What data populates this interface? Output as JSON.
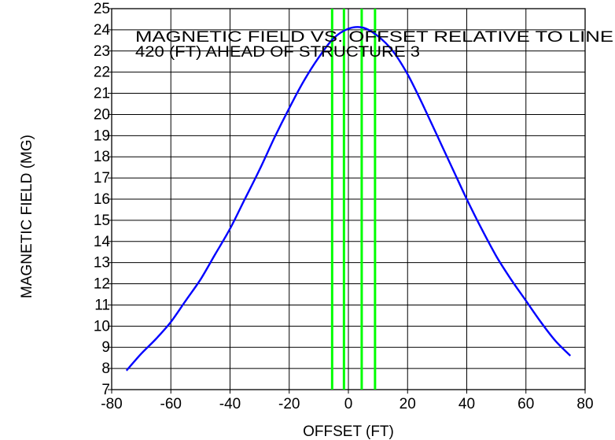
{
  "chart_data": {
    "type": "line",
    "title_lines": [
      "MAGNETIC FIELD VS. OFFSET RELATIVE TO LINE",
      "420 (FT) AHEAD OF STRUCTURE 3"
    ],
    "xlabel": "OFFSET (FT)",
    "ylabel": "MAGNETIC FIELD (MG)",
    "xlim": [
      -80,
      80
    ],
    "ylim": [
      7,
      25
    ],
    "xticks": [
      -80,
      -60,
      -40,
      -20,
      0,
      20,
      40,
      60,
      80
    ],
    "yticks": [
      7,
      8,
      9,
      10,
      11,
      12,
      13,
      14,
      15,
      16,
      17,
      18,
      19,
      20,
      21,
      22,
      23,
      24,
      25
    ],
    "grid": true,
    "vertical_markers": [
      -5.5,
      -1.5,
      4.5,
      9
    ],
    "series": [
      {
        "color": "#0000ff",
        "x": [
          -75,
          -70,
          -65,
          -60,
          -55,
          -50,
          -45,
          -40,
          -35,
          -30,
          -25,
          -20,
          -15,
          -10,
          -5,
          0,
          5,
          10,
          15,
          20,
          25,
          30,
          35,
          40,
          45,
          50,
          55,
          60,
          65,
          70,
          75
        ],
        "y": [
          7.9,
          8.7,
          9.4,
          10.2,
          11.2,
          12.2,
          13.4,
          14.6,
          16.0,
          17.4,
          18.9,
          20.3,
          21.6,
          22.7,
          23.6,
          24.05,
          24.1,
          23.7,
          23.0,
          21.9,
          20.5,
          19.0,
          17.5,
          16.0,
          14.6,
          13.3,
          12.2,
          11.2,
          10.2,
          9.3,
          8.6
        ]
      }
    ],
    "colors": {
      "curve": "#0000ff",
      "markers": "#00ff00",
      "grid": "#000000"
    }
  }
}
